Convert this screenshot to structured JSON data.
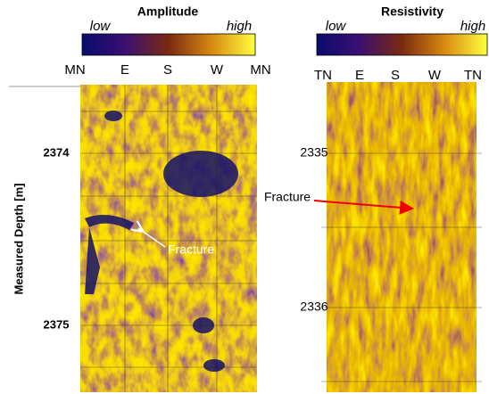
{
  "amplitude_panel": {
    "title": "Amplitude",
    "colorbar": {
      "low": "low",
      "high": "high"
    },
    "directions": [
      "MN",
      "E",
      "S",
      "W",
      "MN"
    ],
    "y_axis_label": "Measured Depth [m]",
    "depth_labels": [
      "2374",
      "2375"
    ],
    "annotation": "Fracture"
  },
  "resistivity_panel": {
    "title": "Resistivity",
    "colorbar": {
      "low": "low",
      "high": "high"
    },
    "directions": [
      "TN",
      "E",
      "S",
      "W",
      "TN"
    ],
    "depth_labels": [
      "2335",
      "2336"
    ],
    "annotation": "Fracture"
  }
}
